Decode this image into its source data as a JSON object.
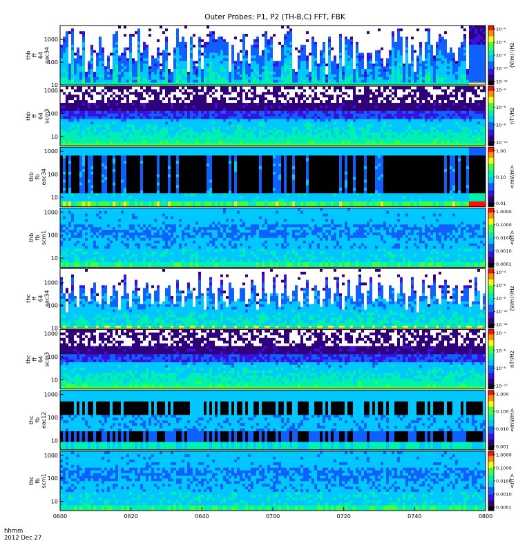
{
  "chart_data": {
    "type": "heatmap",
    "title": "Outer Probes: P1, P2 (TH-B,C) FFT, FBK",
    "xlabel": "hhmm",
    "date_label": "2012 Dec 27",
    "x_ticks": [
      "0600",
      "0620",
      "0640",
      "0700",
      "0720",
      "0740",
      "0800"
    ],
    "x_range_minutes": [
      0,
      120
    ],
    "colormap": [
      "#000000",
      "#30007a",
      "#3a10e0",
      "#1060ff",
      "#00c8ff",
      "#00f0b0",
      "#40ff40",
      "#f8ff00",
      "#ff9000",
      "#ff1000"
    ],
    "panels": [
      {
        "id": "thb-ff-eac34",
        "ylabel": [
          "thb",
          "ff",
          "64",
          "eac34"
        ],
        "yticks": [
          "1000",
          "100",
          "10"
        ],
        "ylim": [
          10,
          4096
        ],
        "style": "sparse-top",
        "high_start": 0.955,
        "high_color": "#ffe040",
        "cbar_ticks": [
          "10⁻⁴",
          "10⁻⁶",
          "10⁻⁸",
          "10⁻¹⁰",
          "10⁻¹²"
        ],
        "cbar_unit": "(V/m)²/Hz"
      },
      {
        "id": "thb-ff-scm3",
        "ylabel": [
          "thb",
          "ff",
          "64",
          "scm3"
        ],
        "yticks": [
          "1000",
          "100",
          "10"
        ],
        "ylim": [
          4,
          1500
        ],
        "style": "scm",
        "cbar_ticks": [
          "10⁻⁴",
          "10⁻⁶",
          "10⁻⁸",
          "10⁻¹⁰"
        ],
        "cbar_unit": "nT²/Hz"
      },
      {
        "id": "thb-fb-eac34",
        "ylabel": [
          "thb",
          "fb",
          "eac34"
        ],
        "yticks": [
          "1000",
          "100",
          "10"
        ],
        "ylim": [
          4,
          1500
        ],
        "style": "fbk-e",
        "high_start": 0.955,
        "cbar_ticks": [
          "1.00",
          "0.10",
          "0.01"
        ],
        "cbar_unit": "<mV/m>"
      },
      {
        "id": "thb-fb-scm1",
        "ylabel": [
          "thb",
          "fb",
          "scm1"
        ],
        "yticks": [
          "1000",
          "100",
          "10"
        ],
        "ylim": [
          4,
          1500
        ],
        "style": "fbk-b",
        "cbar_ticks": [
          "1.0000",
          "0.1000",
          "0.0100",
          "0.0010",
          "0.0001"
        ],
        "cbar_unit": "<nT>"
      },
      {
        "id": "thc-ff-eac34",
        "ylabel": [
          "thc",
          "ff",
          "64",
          "eac34"
        ],
        "yticks": [
          "1000",
          "100",
          "10"
        ],
        "ylim": [
          10,
          4096
        ],
        "style": "spiky",
        "cbar_ticks": [
          "10⁻⁴",
          "10⁻⁶",
          "10⁻⁸",
          "10⁻¹⁰",
          "10⁻¹²"
        ],
        "cbar_unit": "(V/m)²/Hz"
      },
      {
        "id": "thc-ff-scm3",
        "ylabel": [
          "thc",
          "ff",
          "64",
          "scm3"
        ],
        "yticks": [
          "1000",
          "100",
          "10"
        ],
        "ylim": [
          4,
          1500
        ],
        "style": "scm",
        "cbar_ticks": [
          "10⁻⁴",
          "10⁻⁶",
          "10⁻⁸",
          "10⁻¹⁰"
        ],
        "cbar_unit": "nT²/Hz"
      },
      {
        "id": "thc-fb-eac12",
        "ylabel": [
          "thc",
          "fb",
          "eac12"
        ],
        "yticks": [
          "1000",
          "100",
          "10"
        ],
        "ylim": [
          4,
          1500
        ],
        "style": "fbk-e2",
        "cbar_ticks": [
          "1.000",
          "0.100",
          "0.010",
          "0.001"
        ],
        "cbar_unit": "<mV/m>"
      },
      {
        "id": "thc-fb-scm1",
        "ylabel": [
          "thc",
          "fb",
          "scm1"
        ],
        "yticks": [
          "1000",
          "100",
          "10"
        ],
        "ylim": [
          4,
          1500
        ],
        "style": "fbk-b",
        "cbar_ticks": [
          "1.0000",
          "0.1000",
          "0.0100",
          "0.0010",
          "0.0001"
        ],
        "cbar_unit": "<nT>"
      }
    ]
  }
}
